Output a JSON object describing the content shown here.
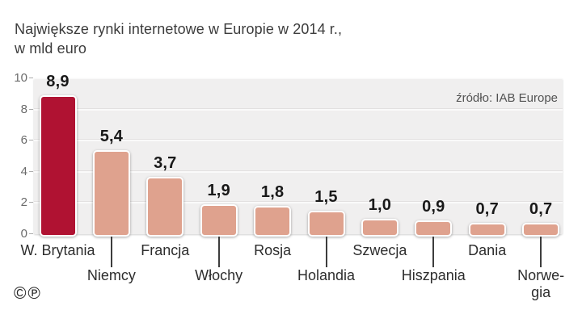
{
  "title": {
    "line1": "Największe rynki internetowe w Europie w 2014 r.,",
    "line2": "w mld euro"
  },
  "source_label": "źródło: IAB Europe",
  "footer": {
    "copyright_symbol": "©",
    "phonogram_symbol": "℗"
  },
  "chart_data": {
    "type": "bar",
    "title": "Największe rynki internetowe w Europie w 2014 r., w mld euro",
    "unit": "mld euro",
    "categories": [
      "W. Brytania",
      "Niemcy",
      "Francja",
      "Włochy",
      "Rosja",
      "Holandia",
      "Szwecja",
      "Hiszpania",
      "Dania",
      "Norwegia"
    ],
    "display_labels": [
      "W. Brytania",
      "Niemcy",
      "Francja",
      "Włochy",
      "Rosja",
      "Holandia",
      "Szwecja",
      "Hiszpania",
      "Dania",
      "Norwe-\ngia"
    ],
    "values": [
      8.9,
      5.4,
      3.7,
      1.9,
      1.8,
      1.5,
      1.0,
      0.9,
      0.7,
      0.7
    ],
    "value_labels": [
      "8,9",
      "5,4",
      "3,7",
      "1,9",
      "1,8",
      "1,5",
      "1,0",
      "0,9",
      "0,7",
      "0,7"
    ],
    "y_ticks": [
      0,
      2,
      4,
      6,
      8,
      10
    ],
    "ylim": [
      0,
      10
    ],
    "xlabel": "",
    "ylabel": "",
    "grid": true,
    "legend_position": "none",
    "source": "źródło: IAB Europe",
    "colors": {
      "highlight": "#b01232",
      "bar": "#dfa28e",
      "highlight_index": 0
    }
  }
}
